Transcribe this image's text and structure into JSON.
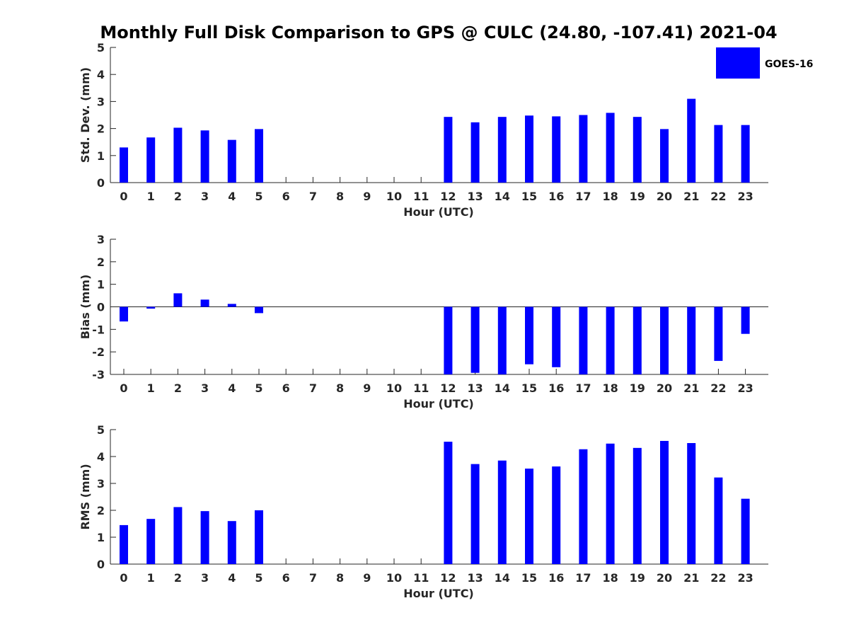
{
  "chart_data": {
    "title": "Monthly Full Disk Comparison to GPS @ CULC (24.80, -107.41) 2021-04",
    "legend": {
      "label": "GOES-16",
      "color": "#0000ff",
      "placement": "top-right"
    },
    "bar_color": "#0000ff",
    "panels": [
      {
        "type": "bar",
        "name": "std-dev",
        "xlabel": "Hour (UTC)",
        "ylabel": "Std. Dev. (mm)",
        "ylim": [
          0,
          5
        ],
        "yticks": [
          "0",
          "1",
          "2",
          "3",
          "4",
          "5"
        ],
        "categories": [
          "0",
          "1",
          "2",
          "3",
          "4",
          "5",
          "6",
          "7",
          "8",
          "9",
          "10",
          "11",
          "12",
          "13",
          "14",
          "15",
          "16",
          "17",
          "18",
          "19",
          "20",
          "21",
          "22",
          "23"
        ],
        "values": [
          1.3,
          1.67,
          2.03,
          1.93,
          1.58,
          1.98,
          null,
          null,
          null,
          null,
          null,
          null,
          2.43,
          2.23,
          2.43,
          2.48,
          2.45,
          2.5,
          2.58,
          2.43,
          1.98,
          3.1,
          2.13,
          2.13
        ]
      },
      {
        "type": "bar",
        "name": "bias",
        "xlabel": "Hour (UTC)",
        "ylabel": "Bias (mm)",
        "ylim": [
          -3,
          3
        ],
        "yticks": [
          "-3",
          "-2",
          "-1",
          "0",
          "1",
          "2",
          "3"
        ],
        "categories": [
          "0",
          "1",
          "2",
          "3",
          "4",
          "5",
          "6",
          "7",
          "8",
          "9",
          "10",
          "11",
          "12",
          "13",
          "14",
          "15",
          "16",
          "17",
          "18",
          "19",
          "20",
          "21",
          "22",
          "23"
        ],
        "values": [
          -0.65,
          -0.08,
          0.6,
          0.32,
          0.13,
          -0.28,
          null,
          null,
          null,
          null,
          null,
          null,
          -3.0,
          -2.93,
          -3.0,
          -2.55,
          -2.68,
          -3.0,
          -3.0,
          -3.0,
          -3.0,
          -3.0,
          -2.4,
          -1.2
        ]
      },
      {
        "type": "bar",
        "name": "rms",
        "xlabel": "Hour (UTC)",
        "ylabel": "RMS (mm)",
        "ylim": [
          0,
          5
        ],
        "yticks": [
          "0",
          "1",
          "2",
          "3",
          "4",
          "5"
        ],
        "categories": [
          "0",
          "1",
          "2",
          "3",
          "4",
          "5",
          "6",
          "7",
          "8",
          "9",
          "10",
          "11",
          "12",
          "13",
          "14",
          "15",
          "16",
          "17",
          "18",
          "19",
          "20",
          "21",
          "22",
          "23"
        ],
        "values": [
          1.45,
          1.68,
          2.12,
          1.97,
          1.6,
          2.0,
          null,
          null,
          null,
          null,
          null,
          null,
          4.55,
          3.72,
          3.85,
          3.55,
          3.63,
          4.27,
          4.48,
          4.32,
          4.58,
          4.5,
          3.22,
          2.43
        ]
      }
    ]
  }
}
